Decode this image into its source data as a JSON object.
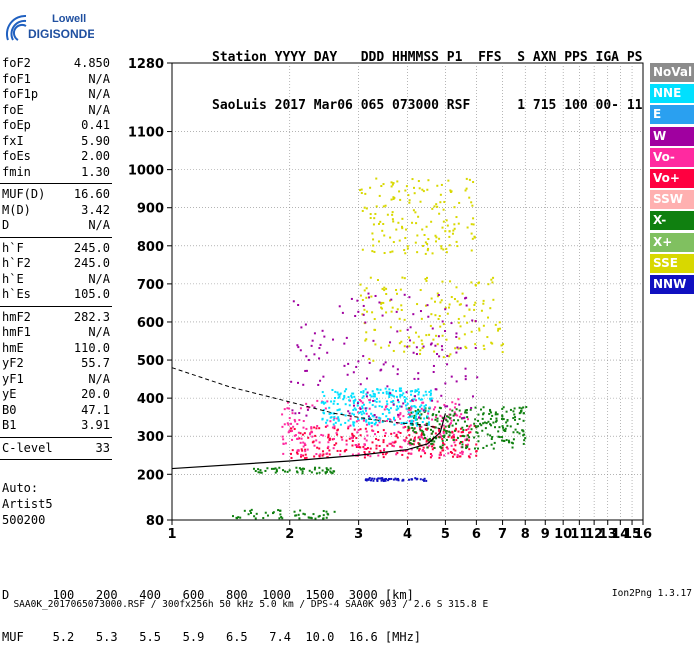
{
  "logo": {
    "line1": "Lowell",
    "line2": "DIGISONDE"
  },
  "header": {
    "line1": "Station YYYY DAY   DDD HHMMSS P1  FFS  S AXN PPS IGA PS",
    "line2": "SaoLuis 2017 Mar06 065 073000 RSF      1 715 100 00- 11"
  },
  "params": [
    {
      "name": "foF2",
      "value": "4.850"
    },
    {
      "name": "foF1",
      "value": "N/A"
    },
    {
      "name": "foF1p",
      "value": "N/A"
    },
    {
      "name": "foE",
      "value": "N/A"
    },
    {
      "name": "foEp",
      "value": "0.41"
    },
    {
      "name": "fxI",
      "value": "5.90"
    },
    {
      "name": "foEs",
      "value": "2.00"
    },
    {
      "name": "fmin",
      "value": "1.30"
    },
    {
      "sep": true
    },
    {
      "name": "MUF(D)",
      "value": "16.60"
    },
    {
      "name": "M(D)",
      "value": "3.42"
    },
    {
      "name": "D",
      "value": "N/A"
    },
    {
      "sep": true
    },
    {
      "name": "h`F",
      "value": "245.0"
    },
    {
      "name": "h`F2",
      "value": "245.0"
    },
    {
      "name": "h`E",
      "value": "N/A"
    },
    {
      "name": "h`Es",
      "value": "105.0"
    },
    {
      "sep": true
    },
    {
      "name": "hmF2",
      "value": "282.3"
    },
    {
      "name": "hmF1",
      "value": "N/A"
    },
    {
      "name": "hmE",
      "value": "110.0"
    },
    {
      "name": "yF2",
      "value": "55.7"
    },
    {
      "name": "yF1",
      "value": "N/A"
    },
    {
      "name": "yE",
      "value": "20.0"
    },
    {
      "name": "B0",
      "value": "47.1"
    },
    {
      "name": "B1",
      "value": "3.91"
    },
    {
      "sep": true
    },
    {
      "name": "C-level",
      "value": "33"
    },
    {
      "sep": true
    }
  ],
  "auto": {
    "line1": "Auto:",
    "line2": "Artist5",
    "line3": "500200"
  },
  "muf_table": {
    "d_label": "D",
    "muf_label": "MUF",
    "distances": [
      "100",
      "200",
      "400",
      "600",
      "800",
      "1000",
      "1500",
      "3000"
    ],
    "distance_unit": "[km]",
    "mufs": [
      "5.2",
      "5.3",
      "5.5",
      "5.9",
      "6.5",
      "7.4",
      "10.0",
      "16.6"
    ],
    "muf_unit": "[MHz]"
  },
  "footer": {
    "left": "SAA0K_2017065073000.RSF / 300fx256h 50 kHz 5.0 km / DPS-4 SAA0K 903 / 2.6 S 315.8 E",
    "right": "Ion2Png 1.3.17"
  },
  "legend": [
    {
      "label": "NoVal",
      "color": "#8c8c8c"
    },
    {
      "label": "NNE",
      "color": "#00e0ff"
    },
    {
      "label": "E",
      "color": "#2aa0f0"
    },
    {
      "label": "W",
      "color": "#a000a0"
    },
    {
      "label": "Vo-",
      "color": "#ff2aa0"
    },
    {
      "label": "Vo+",
      "color": "#ff0040"
    },
    {
      "label": "SSW",
      "color": "#ffb0b0"
    },
    {
      "label": "X-",
      "color": "#108010"
    },
    {
      "label": "X+",
      "color": "#80c060"
    },
    {
      "label": "SSE",
      "color": "#d8d800"
    },
    {
      "label": "NNW",
      "color": "#1010c0"
    }
  ],
  "chart_data": {
    "type": "scatter",
    "title": "",
    "xlabel": "",
    "ylabel": "",
    "x_scale": "log",
    "xlim": [
      1,
      16
    ],
    "ylim": [
      80,
      1280
    ],
    "x_ticks": [
      1,
      2,
      3,
      4,
      5,
      6,
      7,
      8,
      9,
      10,
      11,
      12,
      13,
      14,
      15,
      16
    ],
    "y_ticks": [
      80,
      200,
      300,
      400,
      500,
      600,
      700,
      800,
      900,
      1000,
      1100,
      1280
    ],
    "grid": true,
    "legend_position": "right",
    "clusters": [
      {
        "name": "F trace",
        "direction": "Vo+",
        "x": [
          2.0,
          6.0
        ],
        "y": [
          245,
          330
        ]
      },
      {
        "name": "F trace",
        "direction": "Vo-",
        "x": [
          1.9,
          5.8
        ],
        "y": [
          250,
          400
        ]
      },
      {
        "name": "F trace",
        "direction": "X-",
        "x": [
          4.0,
          8.0
        ],
        "y": [
          270,
          380
        ]
      },
      {
        "name": "F trace",
        "direction": "NNE",
        "x": [
          2.4,
          4.6
        ],
        "y": [
          330,
          430
        ]
      },
      {
        "name": "multi-hop",
        "direction": "SSE",
        "x": [
          3.0,
          7.0
        ],
        "y": [
          500,
          720
        ]
      },
      {
        "name": "multi-hop",
        "direction": "W",
        "x": [
          2.0,
          6.0
        ],
        "y": [
          350,
          680
        ]
      },
      {
        "name": "multi-hop",
        "direction": "SSE",
        "x": [
          3.0,
          6.0
        ],
        "y": [
          780,
          980
        ]
      },
      {
        "name": "Es",
        "direction": "X-",
        "x": [
          1.4,
          2.6
        ],
        "y": [
          86,
          110
        ]
      },
      {
        "name": "Es",
        "direction": "NNW",
        "x": [
          3.1,
          4.5
        ],
        "y": [
          185,
          193
        ]
      },
      {
        "name": "Es",
        "direction": "X-",
        "x": [
          1.6,
          2.6
        ],
        "y": [
          205,
          220
        ]
      }
    ],
    "profile_trace": {
      "x": [
        1.0,
        2.0,
        3.0,
        4.0,
        4.5,
        4.85,
        5.0
      ],
      "y": [
        215,
        235,
        250,
        265,
        280,
        310,
        360
      ]
    },
    "xtrace": {
      "x": [
        1.0,
        1.4,
        2.0,
        2.6,
        3.2,
        3.8,
        4.4,
        4.85
      ],
      "y": [
        480,
        430,
        390,
        360,
        345,
        335,
        330,
        320
      ]
    }
  }
}
